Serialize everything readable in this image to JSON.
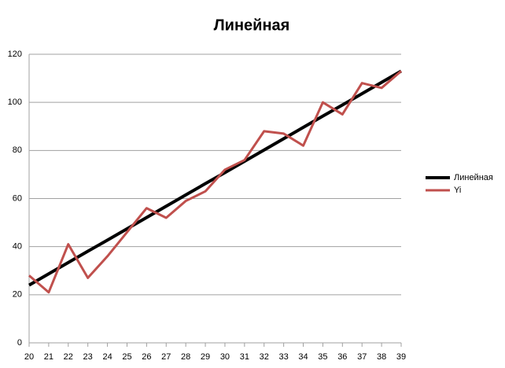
{
  "chart_data": {
    "type": "line",
    "title": "Линейная",
    "x": [
      20,
      21,
      22,
      23,
      24,
      25,
      26,
      27,
      28,
      29,
      30,
      31,
      32,
      33,
      34,
      35,
      36,
      37,
      38,
      39
    ],
    "series": [
      {
        "name": "Линейная",
        "color": "#000000",
        "values": [
          24,
          28.7,
          33.4,
          38.1,
          42.7,
          47.4,
          52.1,
          56.8,
          61.5,
          66.2,
          70.8,
          75.5,
          80.2,
          84.9,
          89.6,
          94.3,
          98.9,
          103.6,
          108.3,
          113
        ]
      },
      {
        "name": "Yi",
        "color": "#c0504d",
        "values": [
          28,
          21,
          41,
          27,
          36,
          46,
          56,
          52,
          59,
          63,
          72,
          76,
          88,
          87,
          82,
          100,
          95,
          108,
          106,
          113
        ]
      }
    ],
    "xlim": [
      20,
      39
    ],
    "xticks": [
      20,
      21,
      22,
      23,
      24,
      25,
      26,
      27,
      28,
      29,
      30,
      31,
      32,
      33,
      34,
      35,
      36,
      37,
      38,
      39
    ],
    "ylim": [
      0,
      120
    ],
    "yticks": [
      0,
      20,
      40,
      60,
      80,
      100,
      120
    ],
    "grid": true,
    "legend": "right"
  }
}
